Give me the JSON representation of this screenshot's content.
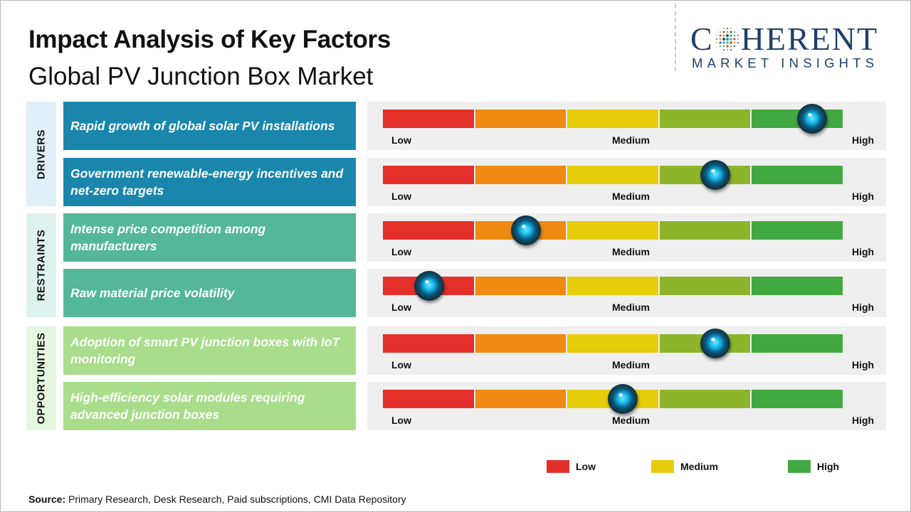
{
  "header": {
    "title": "Impact Analysis of Key Factors",
    "subtitle": "Global PV Junction Box Market"
  },
  "logo": {
    "main": "COHERENT",
    "sub": "MARKET INSIGHTS"
  },
  "groups": [
    {
      "label": "DRIVERS",
      "bg": "#dff0f8",
      "factor_bg": "#1a86ac"
    },
    {
      "label": "RESTRAINTS",
      "bg": "#dff3ee",
      "factor_bg": "#54b898"
    },
    {
      "label": "OPPORTUNITIES",
      "bg": "#e6f7df",
      "factor_bg": "#a9dd8c"
    }
  ],
  "scale": {
    "low_label": "Low",
    "medium_label": "Medium",
    "high_label": "High",
    "segment_colors": [
      "#e3302a",
      "#ef8b12",
      "#e7cc0a",
      "#8db52b",
      "#42a842"
    ]
  },
  "chart_data": {
    "type": "table",
    "title": "Impact Analysis of Key Factors",
    "subtitle": "Global PV Junction Box Market",
    "scale": [
      "Low",
      "Medium",
      "High"
    ],
    "rows": [
      {
        "group": "DRIVERS",
        "factor": "Rapid growth of global solar PV installations",
        "impact": 0.93
      },
      {
        "group": "DRIVERS",
        "factor": "Government renewable-energy incentives and net-zero targets",
        "impact": 0.72
      },
      {
        "group": "RESTRAINTS",
        "factor": "Intense price competition among manufacturers",
        "impact": 0.31
      },
      {
        "group": "RESTRAINTS",
        "factor": "Raw material price volatility",
        "impact": 0.1
      },
      {
        "group": "OPPORTUNITIES",
        "factor": "Adoption of smart PV junction boxes with IoT monitoring",
        "impact": 0.72
      },
      {
        "group": "OPPORTUNITIES",
        "factor": "High-efficiency solar modules requiring advanced junction boxes",
        "impact": 0.52
      }
    ]
  },
  "legend": [
    {
      "label": "Low",
      "color": "#e3302a"
    },
    {
      "label": "Medium",
      "color": "#e7cc0a"
    },
    {
      "label": "High",
      "color": "#42a842"
    }
  ],
  "source": {
    "label": "Source:",
    "text": "Primary Research, Desk Research, Paid subscriptions, CMI Data Repository"
  }
}
